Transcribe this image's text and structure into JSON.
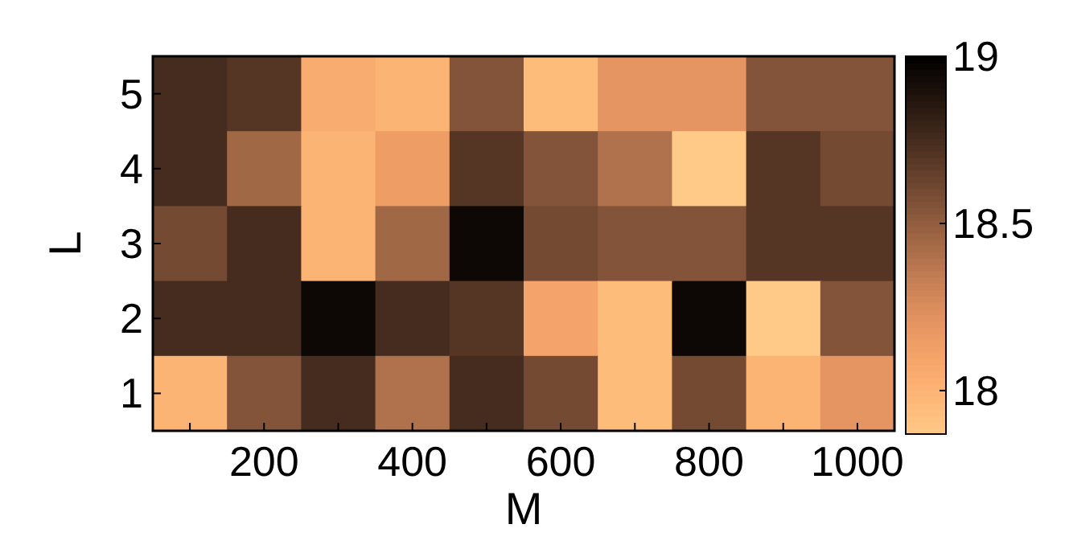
{
  "chart_data": {
    "type": "heatmap",
    "xlabel": "M",
    "ylabel": "L",
    "categories": [
      null,
      "200",
      null,
      "400",
      null,
      "600",
      null,
      "800",
      null,
      "1000"
    ],
    "y_categories": [
      "5",
      "4",
      "3",
      "2",
      "1"
    ],
    "cells": [
      [
        18.75,
        18.7,
        18.05,
        18.0,
        18.55,
        17.95,
        18.2,
        18.2,
        18.55,
        18.55
      ],
      [
        18.75,
        18.45,
        18.0,
        18.15,
        18.7,
        18.55,
        18.4,
        17.85,
        18.7,
        18.6
      ],
      [
        18.6,
        18.75,
        18.0,
        18.45,
        18.95,
        18.6,
        18.55,
        18.55,
        18.7,
        18.7
      ],
      [
        18.75,
        18.75,
        18.95,
        18.75,
        18.7,
        18.1,
        17.95,
        18.95,
        17.85,
        18.55
      ],
      [
        18.0,
        18.55,
        18.75,
        18.4,
        18.75,
        18.6,
        17.95,
        18.6,
        18.0,
        18.2
      ]
    ],
    "clim": [
      17.87,
      19
    ],
    "cticks": [
      18,
      18.5,
      19
    ]
  }
}
